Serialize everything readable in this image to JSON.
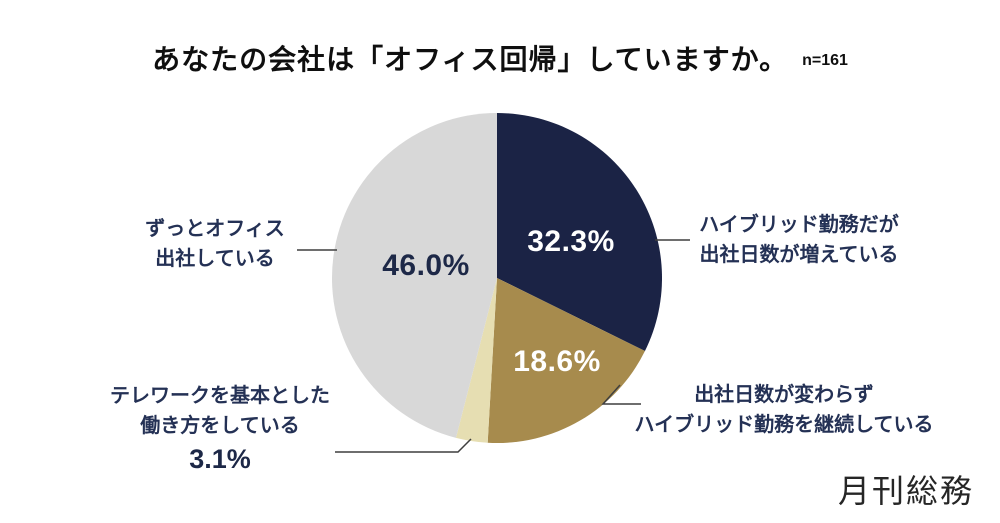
{
  "header": {
    "title": "あなたの会社は「オフィス回帰」していますか。",
    "sample_size": "n=161"
  },
  "brand": {
    "logo_text": "月刊総務"
  },
  "colors": {
    "slice_navy": "#1b2345",
    "slice_gold": "#a78b4d",
    "slice_cream": "#e6deb2",
    "slice_gray": "#d8d8d8",
    "text_navy": "#243155",
    "leader_line": "#3f3f3f",
    "background": "#ffffff"
  },
  "chart_data": {
    "type": "pie",
    "title": "あなたの会社は「オフィス回帰」していますか。",
    "n_label": "n=161",
    "start_angle_deg": 0,
    "direction": "clockwise",
    "legend_position": "callout-labels",
    "slices": [
      {
        "label": "ハイブリッド勤務だが出社日数が増えている",
        "value": 32.3,
        "value_label": "32.3%",
        "color": "#1b2345"
      },
      {
        "label": "出社日数が変わらずハイブリッド勤務を継続している",
        "value": 18.6,
        "value_label": "18.6%",
        "color": "#a78b4d"
      },
      {
        "label": "テレワークを基本とした働き方をしている",
        "value": 3.1,
        "value_label": "3.1%",
        "color": "#e6deb2"
      },
      {
        "label": "ずっとオフィス出社している",
        "value": 46.0,
        "value_label": "46.0%",
        "color": "#d8d8d8"
      }
    ]
  },
  "annotations": {
    "left": {
      "line1": "ずっとオフィス",
      "line2": "出社している"
    },
    "right_top": {
      "line1": "ハイブリッド勤務だが",
      "line2": "出社日数が増えている"
    },
    "right_bottom": {
      "line1": "出社日数が変わらず",
      "line2": "ハイブリッド勤務を継続している"
    },
    "bottom_left": {
      "line1": "テレワークを基本とした",
      "line2": "働き方をしている",
      "pct": "3.1%"
    }
  }
}
